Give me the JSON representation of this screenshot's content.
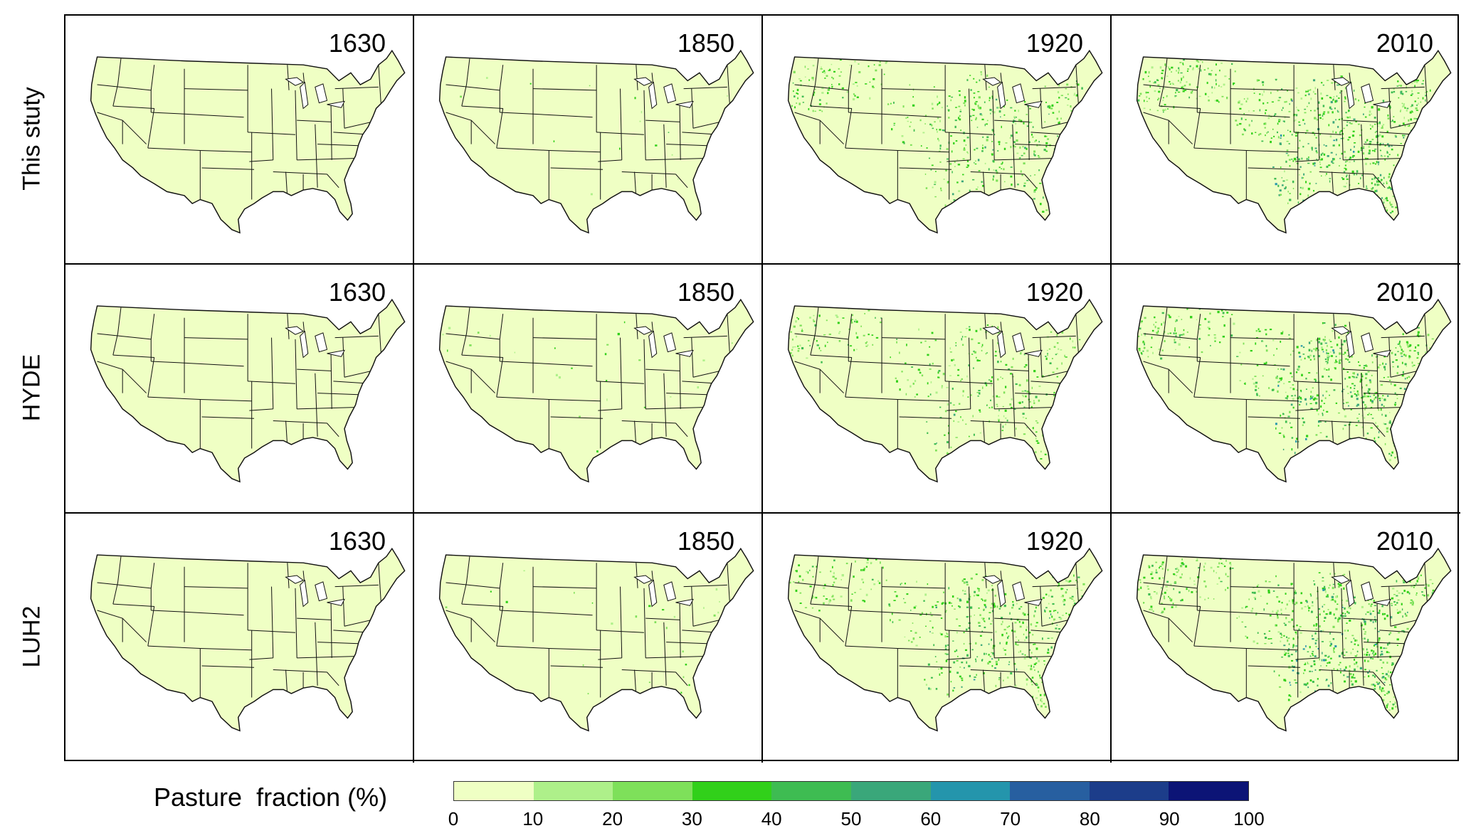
{
  "rows": [
    {
      "label": "This stuty",
      "key": "this_study"
    },
    {
      "label": "HYDE",
      "key": "hyde"
    },
    {
      "label": "LUH2",
      "key": "luh2"
    }
  ],
  "years": [
    "1630",
    "1850",
    "1920",
    "2010"
  ],
  "colors": {
    "land_base": "#efffc4",
    "state_border": "#111111",
    "bins": [
      "#efffc4",
      "#aef08a",
      "#7ee05a",
      "#31d01a",
      "#3ebc52",
      "#3aa77a",
      "#2495ac",
      "#275fa0",
      "#1c3d8a",
      "#0c1476"
    ]
  },
  "legend": {
    "title": "Pasture  fraction (%)",
    "ticks": [
      "0",
      "10",
      "20",
      "30",
      "40",
      "50",
      "60",
      "70",
      "80",
      "90",
      "100"
    ]
  },
  "pasture_intensity": {
    "this_study": {
      "1630": 0.0,
      "1850": 0.02,
      "1920": 0.55,
      "2010": 0.9
    },
    "hyde": {
      "1630": 0.0,
      "1850": 0.03,
      "1920": 0.45,
      "2010": 0.75
    },
    "luh2": {
      "1630": 0.0,
      "1850": 0.03,
      "1920": 0.65,
      "2010": 0.85
    }
  }
}
